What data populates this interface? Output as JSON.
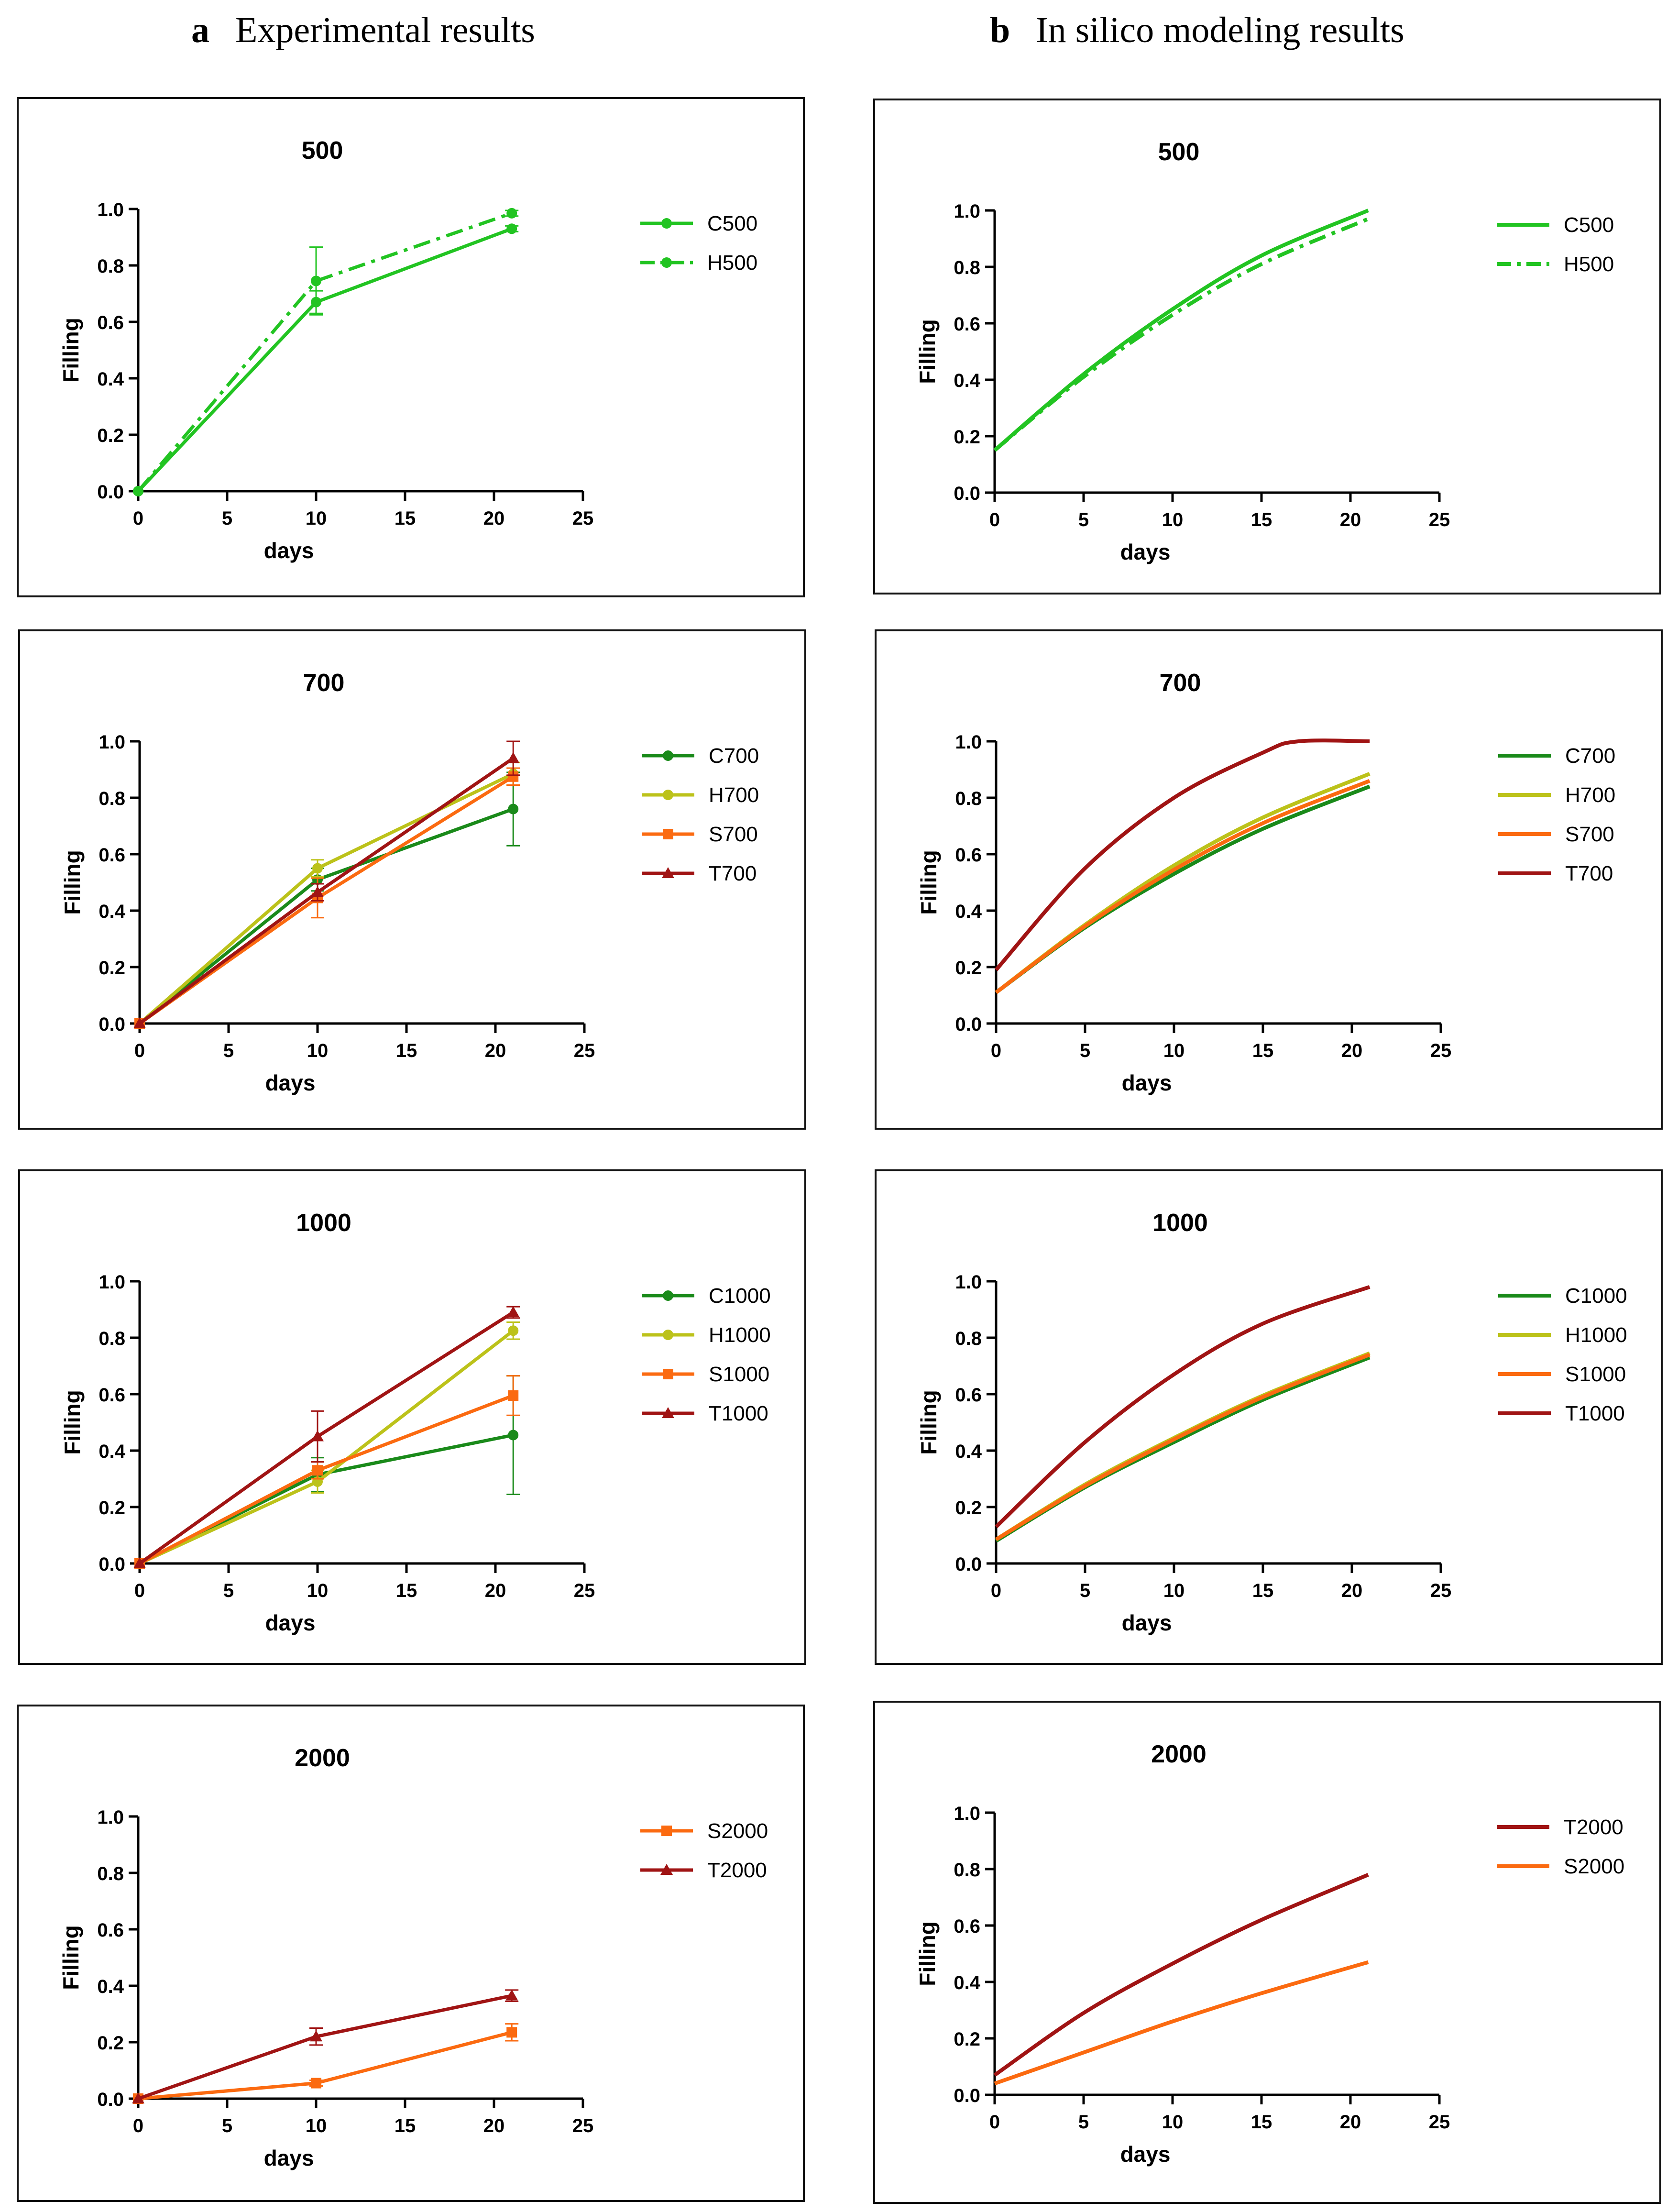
{
  "headers": {
    "a": {
      "letter": "a",
      "text": "Experimental results"
    },
    "b": {
      "letter": "b",
      "text": "In silico modeling results"
    }
  },
  "colors": {
    "C": "#1a8a1a",
    "C500": "#22c422",
    "H": "#bcc21a",
    "S": "#fb6a10",
    "T": "#a01414"
  },
  "chart_data": [
    {
      "id": "exp-500",
      "type": "line",
      "title": "500",
      "xlabel": "days",
      "ylabel": "Filling",
      "xlim": [
        0,
        25
      ],
      "ylim": [
        0,
        1.0
      ],
      "xticks": [
        "0",
        "5",
        "10",
        "15",
        "20",
        "25"
      ],
      "yticks": [
        "0.0",
        "0.2",
        "0.4",
        "0.6",
        "0.8",
        "1.0"
      ],
      "series": [
        {
          "name": "C500",
          "color": "#22c422",
          "marker": "circle",
          "dash": "solid",
          "x": [
            0,
            10,
            21
          ],
          "values": [
            0.0,
            0.67,
            0.93
          ],
          "err": [
            0,
            0.04,
            0.01
          ]
        },
        {
          "name": "H500",
          "color": "#22c422",
          "marker": "circle",
          "dash": "dashdot",
          "x": [
            0,
            10,
            21
          ],
          "values": [
            0.0,
            0.745,
            0.985
          ],
          "err": [
            0,
            0.12,
            0.01
          ]
        }
      ]
    },
    {
      "id": "sim-500",
      "type": "line",
      "title": "500",
      "xlabel": "days",
      "ylabel": "Filling",
      "xlim": [
        0,
        25
      ],
      "ylim": [
        0,
        1.0
      ],
      "xticks": [
        "0",
        "5",
        "10",
        "15",
        "20",
        "25"
      ],
      "yticks": [
        "0.0",
        "0.2",
        "0.4",
        "0.6",
        "0.8",
        "1.0"
      ],
      "series": [
        {
          "name": "C500",
          "color": "#22c422",
          "dash": "solid",
          "x": [
            0,
            5,
            10,
            15,
            21
          ],
          "values": [
            0.15,
            0.42,
            0.65,
            0.84,
            1.0
          ]
        },
        {
          "name": "H500",
          "color": "#22c422",
          "dash": "dashdot",
          "x": [
            0,
            5,
            10,
            15,
            21
          ],
          "values": [
            0.15,
            0.41,
            0.63,
            0.81,
            0.97
          ]
        }
      ]
    },
    {
      "id": "exp-700",
      "type": "line",
      "title": "700",
      "xlabel": "days",
      "ylabel": "Filling",
      "xlim": [
        0,
        25
      ],
      "ylim": [
        0,
        1.0
      ],
      "xticks": [
        "0",
        "5",
        "10",
        "15",
        "20",
        "25"
      ],
      "yticks": [
        "0.0",
        "0.2",
        "0.4",
        "0.6",
        "0.8",
        "1.0"
      ],
      "series": [
        {
          "name": "C700",
          "color": "#1a8a1a",
          "marker": "circle",
          "dash": "solid",
          "x": [
            0,
            10,
            21
          ],
          "values": [
            0.0,
            0.51,
            0.76
          ],
          "err": [
            0,
            0.04,
            0.13
          ]
        },
        {
          "name": "H700",
          "color": "#bcc21a",
          "marker": "circle",
          "dash": "solid",
          "x": [
            0,
            10,
            21
          ],
          "values": [
            0.0,
            0.55,
            0.885
          ],
          "err": [
            0,
            0.03,
            0.04
          ]
        },
        {
          "name": "S700",
          "color": "#fb6a10",
          "marker": "square",
          "dash": "solid",
          "x": [
            0,
            10,
            21
          ],
          "values": [
            0.0,
            0.445,
            0.875
          ],
          "err": [
            0,
            0.07,
            0.03
          ]
        },
        {
          "name": "T700",
          "color": "#a01414",
          "marker": "triangle",
          "dash": "solid",
          "x": [
            0,
            10,
            21
          ],
          "values": [
            0.0,
            0.465,
            0.94
          ],
          "err": [
            0,
            0.03,
            0.06
          ]
        }
      ]
    },
    {
      "id": "sim-700",
      "type": "line",
      "title": "700",
      "xlabel": "days",
      "ylabel": "Filling",
      "xlim": [
        0,
        25
      ],
      "ylim": [
        0,
        1.0
      ],
      "xticks": [
        "0",
        "5",
        "10",
        "15",
        "20",
        "25"
      ],
      "yticks": [
        "0.0",
        "0.2",
        "0.4",
        "0.6",
        "0.8",
        "1.0"
      ],
      "series": [
        {
          "name": "C700",
          "color": "#1a8a1a",
          "dash": "solid",
          "x": [
            0,
            5,
            10,
            15,
            21
          ],
          "values": [
            0.11,
            0.34,
            0.53,
            0.69,
            0.84
          ]
        },
        {
          "name": "H700",
          "color": "#bcc21a",
          "dash": "solid",
          "x": [
            0,
            5,
            10,
            15,
            21
          ],
          "values": [
            0.11,
            0.35,
            0.56,
            0.73,
            0.885
          ]
        },
        {
          "name": "S700",
          "color": "#fb6a10",
          "dash": "solid",
          "x": [
            0,
            5,
            10,
            15,
            21
          ],
          "values": [
            0.11,
            0.345,
            0.545,
            0.71,
            0.86
          ]
        },
        {
          "name": "T700",
          "color": "#a01414",
          "dash": "solid",
          "x": [
            0,
            5,
            10,
            15,
            17,
            21
          ],
          "values": [
            0.19,
            0.55,
            0.8,
            0.96,
            1.0,
            1.0
          ]
        }
      ]
    },
    {
      "id": "exp-1000",
      "type": "line",
      "title": "1000",
      "xlabel": "days",
      "ylabel": "Filling",
      "xlim": [
        0,
        25
      ],
      "ylim": [
        0,
        1.0
      ],
      "xticks": [
        "0",
        "5",
        "10",
        "15",
        "20",
        "25"
      ],
      "yticks": [
        "0.0",
        "0.2",
        "0.4",
        "0.6",
        "0.8",
        "1.0"
      ],
      "series": [
        {
          "name": "C1000",
          "color": "#1a8a1a",
          "marker": "circle",
          "dash": "solid",
          "x": [
            0,
            10,
            21
          ],
          "values": [
            0.0,
            0.315,
            0.455
          ],
          "err": [
            0,
            0.06,
            0.21
          ]
        },
        {
          "name": "H1000",
          "color": "#bcc21a",
          "marker": "circle",
          "dash": "solid",
          "x": [
            0,
            10,
            21
          ],
          "values": [
            0.0,
            0.29,
            0.825
          ],
          "err": [
            0,
            0.04,
            0.03
          ]
        },
        {
          "name": "S1000",
          "color": "#fb6a10",
          "marker": "square",
          "dash": "solid",
          "x": [
            0,
            10,
            21
          ],
          "values": [
            0.0,
            0.33,
            0.595
          ],
          "err": [
            0,
            0.03,
            0.07
          ]
        },
        {
          "name": "T1000",
          "color": "#a01414",
          "marker": "triangle",
          "dash": "solid",
          "x": [
            0,
            10,
            21
          ],
          "values": [
            0.0,
            0.45,
            0.89
          ],
          "err": [
            0,
            0.09,
            0.02
          ]
        }
      ]
    },
    {
      "id": "sim-1000",
      "type": "line",
      "title": "1000",
      "xlabel": "days",
      "ylabel": "Filling",
      "xlim": [
        0,
        25
      ],
      "ylim": [
        0,
        1.0
      ],
      "xticks": [
        "0",
        "5",
        "10",
        "15",
        "20",
        "25"
      ],
      "yticks": [
        "0.0",
        "0.2",
        "0.4",
        "0.6",
        "0.8",
        "1.0"
      ],
      "series": [
        {
          "name": "C1000",
          "color": "#1a8a1a",
          "dash": "solid",
          "x": [
            0,
            5,
            10,
            15,
            21
          ],
          "values": [
            0.08,
            0.27,
            0.43,
            0.58,
            0.73
          ]
        },
        {
          "name": "H1000",
          "color": "#bcc21a",
          "dash": "solid",
          "x": [
            0,
            5,
            10,
            15,
            21
          ],
          "values": [
            0.085,
            0.28,
            0.445,
            0.595,
            0.745
          ]
        },
        {
          "name": "S1000",
          "color": "#fb6a10",
          "dash": "solid",
          "x": [
            0,
            5,
            10,
            15,
            21
          ],
          "values": [
            0.085,
            0.275,
            0.44,
            0.59,
            0.74
          ]
        },
        {
          "name": "T1000",
          "color": "#a01414",
          "dash": "solid",
          "x": [
            0,
            5,
            10,
            15,
            21
          ],
          "values": [
            0.13,
            0.43,
            0.67,
            0.85,
            0.98
          ]
        }
      ]
    },
    {
      "id": "exp-2000",
      "type": "line",
      "title": "2000",
      "xlabel": "days",
      "ylabel": "Filling",
      "xlim": [
        0,
        25
      ],
      "ylim": [
        0,
        1.0
      ],
      "xticks": [
        "0",
        "5",
        "10",
        "15",
        "20",
        "25"
      ],
      "yticks": [
        "0.0",
        "0.2",
        "0.4",
        "0.6",
        "0.8",
        "1.0"
      ],
      "series": [
        {
          "name": "S2000",
          "color": "#fb6a10",
          "marker": "square",
          "dash": "solid",
          "x": [
            0,
            10,
            21
          ],
          "values": [
            0.0,
            0.055,
            0.235
          ],
          "err": [
            0,
            0.01,
            0.03
          ]
        },
        {
          "name": "T2000",
          "color": "#a01414",
          "marker": "triangle",
          "dash": "solid",
          "x": [
            0,
            10,
            21
          ],
          "values": [
            0.0,
            0.22,
            0.365
          ],
          "err": [
            0,
            0.03,
            0.02
          ]
        }
      ]
    },
    {
      "id": "sim-2000",
      "type": "line",
      "title": "2000",
      "xlabel": "days",
      "ylabel": "Filling",
      "xlim": [
        0,
        25
      ],
      "ylim": [
        0,
        1.0
      ],
      "xticks": [
        "0",
        "5",
        "10",
        "15",
        "20",
        "25"
      ],
      "yticks": [
        "0.0",
        "0.2",
        "0.4",
        "0.6",
        "0.8",
        "1.0"
      ],
      "series": [
        {
          "name": "T2000",
          "color": "#a01414",
          "dash": "solid",
          "x": [
            0,
            5,
            10,
            15,
            21
          ],
          "values": [
            0.07,
            0.29,
            0.465,
            0.62,
            0.78
          ]
        },
        {
          "name": "S2000",
          "color": "#fb6a10",
          "dash": "solid",
          "x": [
            0,
            5,
            10,
            15,
            21
          ],
          "values": [
            0.04,
            0.15,
            0.26,
            0.36,
            0.47
          ]
        }
      ]
    }
  ]
}
